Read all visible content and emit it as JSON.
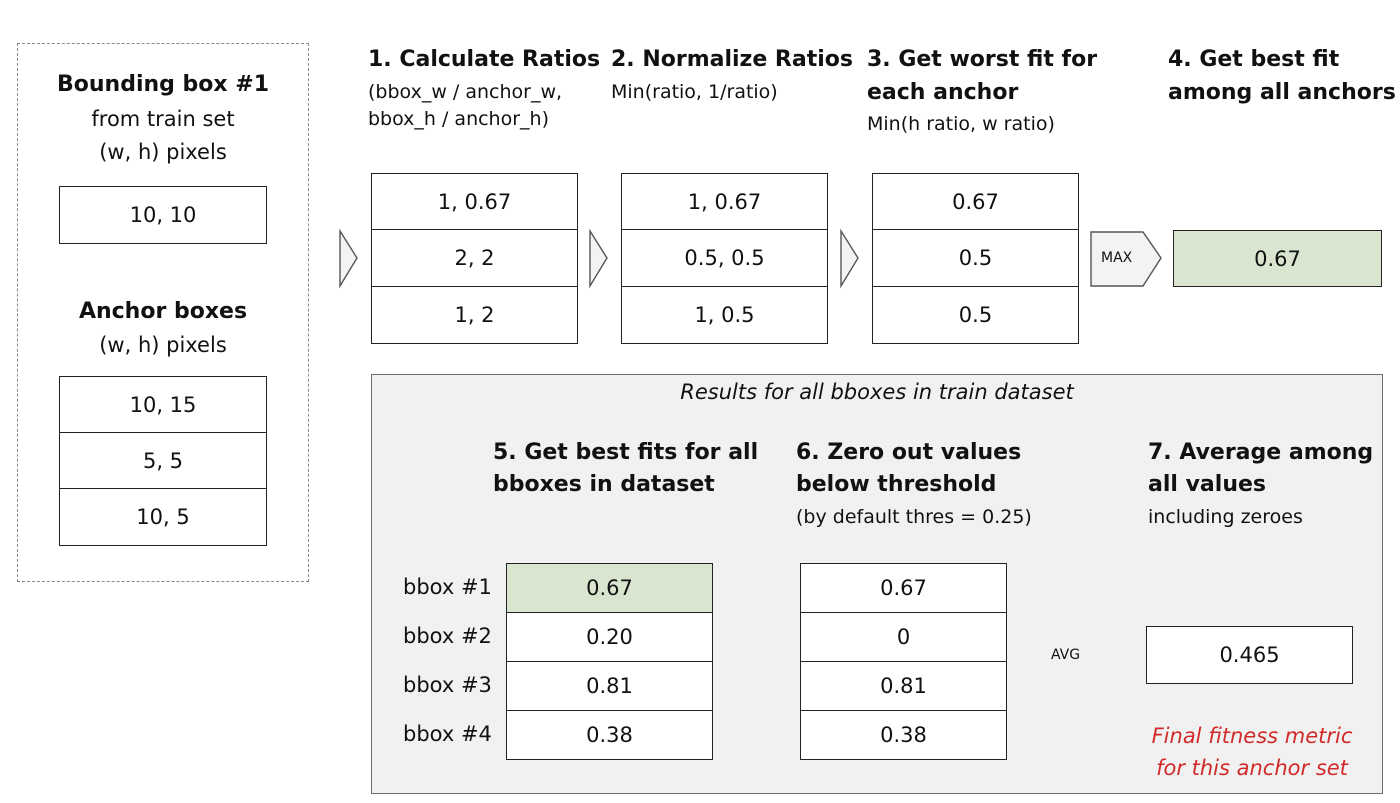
{
  "colors": {
    "highlight": "#d9e5cf",
    "annotation": "#d12a2a",
    "panel": "#f1f1f1"
  },
  "left": {
    "bbox_title": "Bounding box #1",
    "bbox_sub1": "from train set",
    "bbox_sub2": "(w, h) pixels",
    "bbox_value": "10, 10",
    "anchor_title": "Anchor boxes",
    "anchor_sub": "(w, h) pixels",
    "anchor_values": [
      "10, 15",
      "5, 5",
      "10, 5"
    ]
  },
  "step1": {
    "title": "1. Calculate Ratios",
    "sub1": "(bbox_w / anchor_w,",
    "sub2": "bbox_h / anchor_h)",
    "values": [
      "1, 0.67",
      "2, 2",
      "1, 2"
    ]
  },
  "step2": {
    "title": "2. Normalize Ratios",
    "sub": "Min(ratio, 1/ratio)",
    "values": [
      "1, 0.67",
      "0.5, 0.5",
      "1, 0.5"
    ]
  },
  "step3": {
    "title1": "3. Get worst fit for",
    "title2": "each anchor",
    "sub": "Min(h ratio, w ratio)",
    "values": [
      "0.67",
      "0.5",
      "0.5"
    ]
  },
  "step4": {
    "title1": "4. Get best fit",
    "title2": "among all anchors",
    "tag": "MAX",
    "value": "0.67"
  },
  "results": {
    "title": "Results for all bboxes in train dataset",
    "step5_title1": "5. Get best fits for all",
    "step5_title2": "bboxes in dataset",
    "step6_title1": "6. Zero out values",
    "step6_title2": "below threshold",
    "step6_sub": "(by default thres = 0.25)",
    "step7_title1": "7. Average among",
    "step7_title2": "all values",
    "step7_sub": "including zeroes",
    "bbox_labels": [
      "bbox #1",
      "bbox #2",
      "bbox #3",
      "bbox #4"
    ],
    "best_fits": [
      "0.67",
      "0.20",
      "0.81",
      "0.38"
    ],
    "thresholded": [
      "0.67",
      "0",
      "0.81",
      "0.38"
    ],
    "avg_tag": "AVG",
    "final_value": "0.465",
    "annotation1": "Final fitness metric",
    "annotation2": "for this anchor set"
  }
}
